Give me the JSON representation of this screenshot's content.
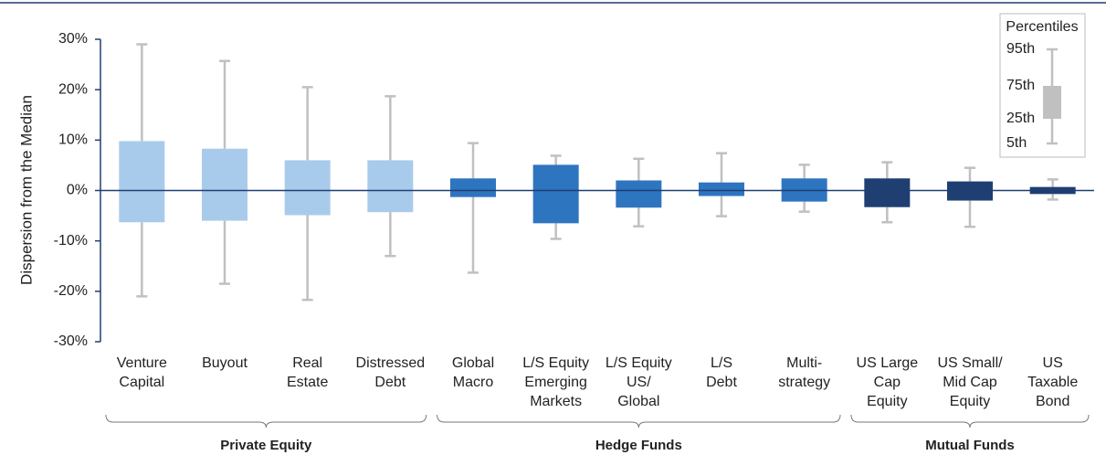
{
  "chart_data": {
    "type": "box",
    "ylabel": "Dispersion from the Median",
    "categories": [
      [
        "Venture",
        "Capital"
      ],
      [
        "Buyout"
      ],
      [
        "Real",
        "Estate"
      ],
      [
        "Distressed",
        "Debt"
      ],
      [
        "Global",
        "Macro"
      ],
      [
        "L/S Equity",
        "Emerging",
        "Markets"
      ],
      [
        "L/S Equity",
        "US/",
        "Global"
      ],
      [
        "L/S",
        "Debt"
      ],
      [
        "Multi-",
        "strategy"
      ],
      [
        "US Large",
        "Cap",
        "Equity"
      ],
      [
        "US Small/",
        "Mid Cap",
        "Equity"
      ],
      [
        "US",
        "Taxable",
        "Bond"
      ]
    ],
    "p95": [
      29,
      25.7,
      20.5,
      18.7,
      9.4,
      6.9,
      6.3,
      7.4,
      5.1,
      5.6,
      4.5,
      2.2
    ],
    "p75": [
      9.8,
      8.3,
      6.0,
      6.0,
      2.4,
      5.1,
      2.0,
      1.6,
      2.4,
      2.4,
      1.8,
      0.7
    ],
    "p25": [
      -6.3,
      -6.0,
      -4.9,
      -4.3,
      -1.3,
      -6.5,
      -3.4,
      -1.1,
      -2.2,
      -3.3,
      -2.0,
      -0.7
    ],
    "p5": [
      -21,
      -18.5,
      -21.7,
      -13,
      -16.3,
      -9.6,
      -7.1,
      -5.1,
      -4.2,
      -6.3,
      -7.2,
      -1.8
    ],
    "groups": [
      {
        "name": "Private Equity",
        "start": 0,
        "end": 3,
        "color": "#a9cbeb"
      },
      {
        "name": "Hedge Funds",
        "start": 4,
        "end": 8,
        "color": "#2e75c0"
      },
      {
        "name": "Mutual Funds",
        "start": 9,
        "end": 11,
        "color": "#1f3e72"
      }
    ],
    "whisker_color": "#c0c0c0",
    "ylim": [
      -30,
      30
    ],
    "yticks": [
      {
        "value": -30,
        "label": "-30%"
      },
      {
        "value": -20,
        "label": "-20%"
      },
      {
        "value": -10,
        "label": "-10%"
      },
      {
        "value": 0,
        "label": "0%"
      },
      {
        "value": 10,
        "label": "10%"
      },
      {
        "value": 20,
        "label": "20%"
      },
      {
        "value": 30,
        "label": "30%"
      }
    ],
    "legend": {
      "title": "Percentiles",
      "labels": [
        "95th",
        "75th",
        "25th",
        "5th"
      ],
      "color": "#c0c0c0"
    }
  }
}
